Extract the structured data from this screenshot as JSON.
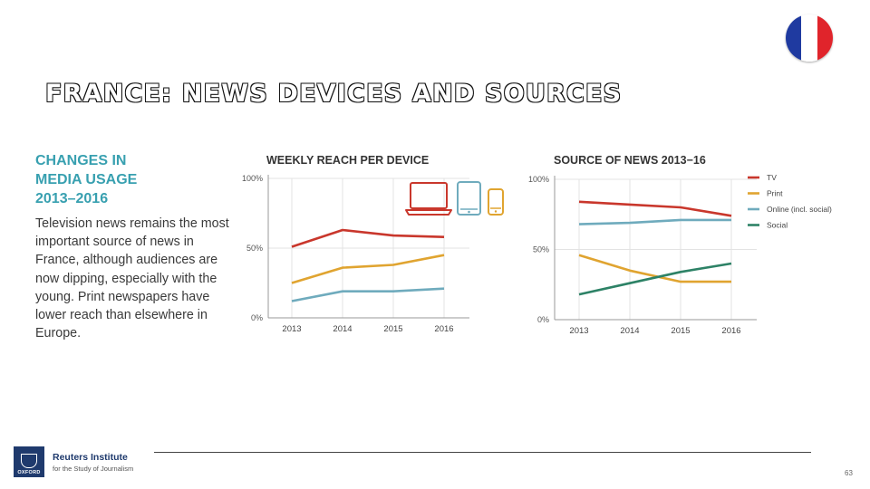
{
  "slide": {
    "title": "FRANCE: NEWS DEVICES AND SOURCES",
    "page_number": "63"
  },
  "flag": {
    "colors": [
      "#1f3aa0",
      "#ffffff",
      "#e0242b"
    ]
  },
  "left_panel": {
    "heading_lines": [
      "CHANGES IN",
      "MEDIA USAGE",
      "2013–2016"
    ],
    "body": "Television news remains the most important source of news in France, although audiences are now dipping, especially with the young. Print newspapers have lower reach than elsewhere in Europe."
  },
  "footer": {
    "org_name": "Reuters Institute",
    "org_sub": "for the Study of Journalism",
    "crest_text": "OXFORD"
  },
  "chart_data": [
    {
      "type": "line",
      "title": "WEEKLY REACH PER DEVICE",
      "categories": [
        "2013",
        "2014",
        "2015",
        "2016"
      ],
      "y_ticks": [
        "100%",
        "50%",
        "0%"
      ],
      "ylim": [
        0,
        100
      ],
      "grid": true,
      "legend_icons": [
        {
          "icon": "laptop-icon",
          "color": "#c9372c"
        },
        {
          "icon": "tablet-icon",
          "color": "#6fabbd"
        },
        {
          "icon": "smartphone-icon",
          "color": "#e0a430"
        }
      ],
      "series": [
        {
          "key": "computer",
          "color": "#c9372c",
          "values": [
            51,
            63,
            59,
            58
          ]
        },
        {
          "key": "smartphone",
          "color": "#e0a430",
          "values": [
            25,
            36,
            38,
            45
          ]
        },
        {
          "key": "tablet",
          "color": "#6fabbd",
          "values": [
            12,
            19,
            19,
            21
          ]
        }
      ]
    },
    {
      "type": "line",
      "title": "SOURCE OF NEWS 2013−16",
      "categories": [
        "2013",
        "2014",
        "2015",
        "2016"
      ],
      "y_ticks": [
        "100%",
        "50%",
        "0%"
      ],
      "ylim": [
        0,
        100
      ],
      "grid": true,
      "legend_position": "top-right",
      "series": [
        {
          "name": "TV",
          "color": "#c9372c",
          "values": [
            84,
            82,
            80,
            74
          ]
        },
        {
          "name": "Print",
          "color": "#e0a430",
          "values": [
            46,
            35,
            27,
            27
          ]
        },
        {
          "name": "Online (incl. social)",
          "color": "#6fabbd",
          "values": [
            68,
            69,
            71,
            71
          ]
        },
        {
          "name": "Social",
          "color": "#2d8266",
          "values": [
            18,
            26,
            34,
            40
          ]
        }
      ]
    }
  ]
}
